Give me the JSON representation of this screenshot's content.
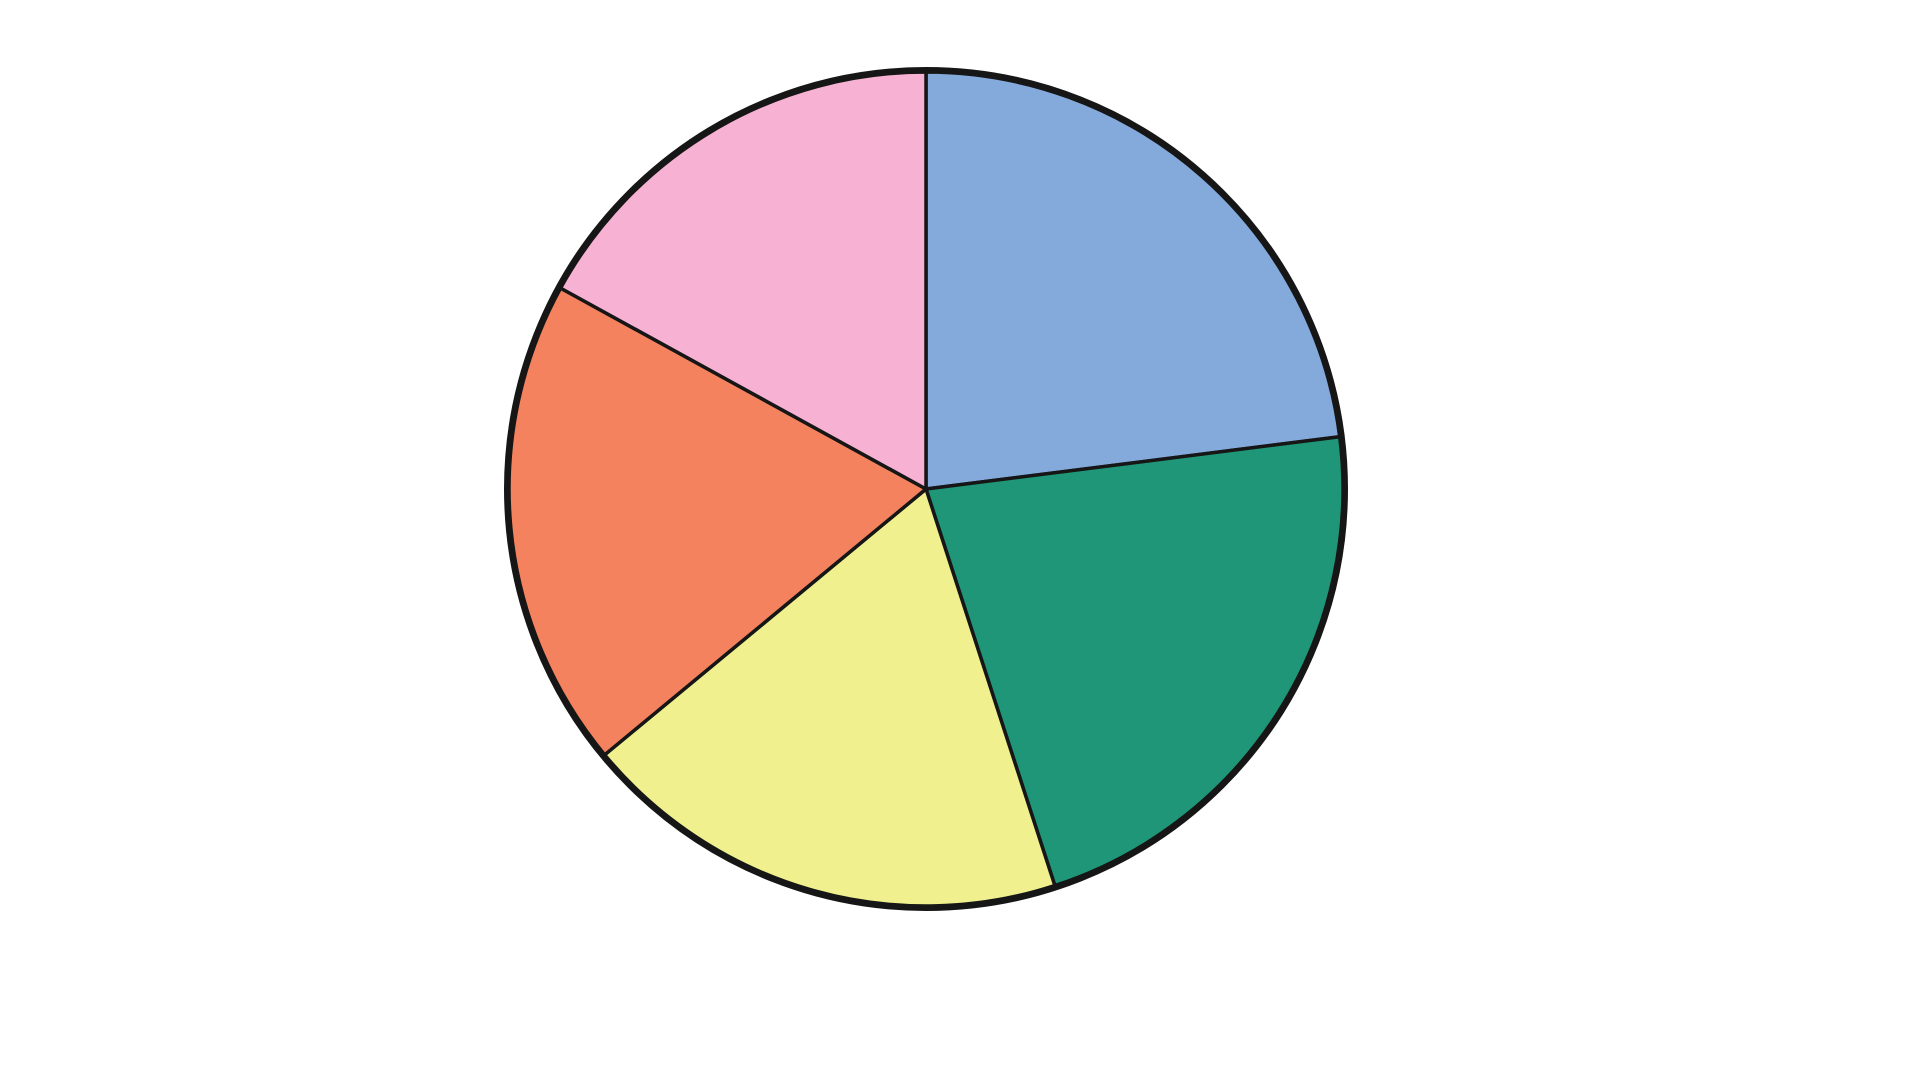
{
  "chart_data": {
    "type": "pie",
    "values": [
      23,
      22,
      19,
      19,
      17
    ],
    "colors": [
      "#84a9db",
      "#1f9677",
      "#f0f08f",
      "#f4825e",
      "#f7b2d3"
    ],
    "start_angle": 0,
    "direction": "clockwise"
  }
}
